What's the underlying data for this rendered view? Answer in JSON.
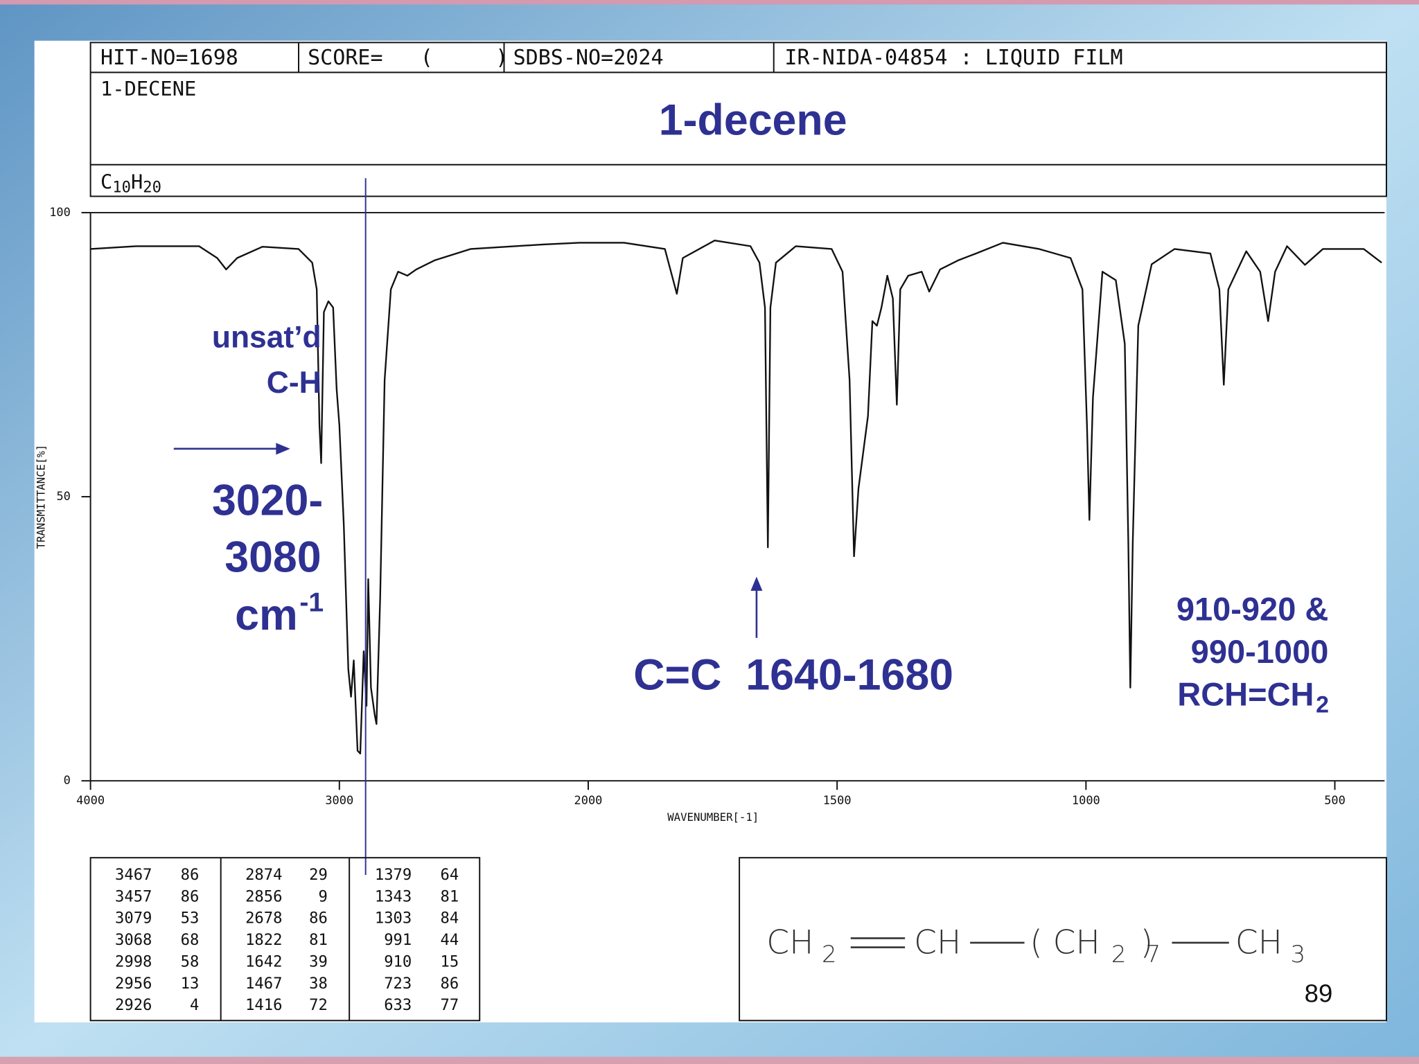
{
  "header": {
    "hit": "HIT-NO=1698",
    "score": "SCORE=   (     )",
    "sdbs": "SDBS-NO=2024",
    "method": "IR-NIDA-04854 : LIQUID FILM",
    "name": "1-DECENE",
    "formula": [
      "C",
      "10",
      "H",
      "20"
    ]
  },
  "title": "1-decene",
  "annotations": {
    "ch_line1": "unsat’d",
    "ch_line2": "C-H",
    "ch_range1": "3020-",
    "ch_range2": "3080",
    "ch_unit": "cm",
    "ch_unit_exp": "-1",
    "cc": "C=C  1640-1680",
    "rch1": "910-920 &",
    "rch2": "990-1000",
    "rch3": "RCH=CH",
    "rch3_sub": "2"
  },
  "chart_data": {
    "type": "line",
    "x_label": "WAVENUMBER[-1]",
    "y_label": "TRANSMITTANCE[%]",
    "xlim": [
      4000,
      400
    ],
    "x_scale": {
      "break": 2000,
      "factor": 2
    },
    "xticks": [
      4000,
      3000,
      2000,
      1500,
      1000,
      500
    ],
    "ylim": [
      0,
      100
    ],
    "yticks": [
      0,
      50,
      100
    ],
    "color": "#111111",
    "x": [
      4000,
      3818,
      3564,
      3491,
      3455,
      3411,
      3309,
      3164,
      3109,
      3091,
      3080,
      3073,
      3062,
      3044,
      3025,
      3011,
      3000,
      2982,
      2964,
      2953,
      2942,
      2927,
      2916,
      2902,
      2891,
      2884,
      2873,
      2858,
      2851,
      2836,
      2818,
      2793,
      2764,
      2727,
      2691,
      2618,
      2473,
      2182,
      2036,
      1928,
      1846,
      1822,
      1810,
      1746,
      1674,
      1656,
      1645,
      1639,
      1634,
      1623,
      1583,
      1511,
      1489,
      1475,
      1466,
      1457,
      1438,
      1429,
      1420,
      1411,
      1399,
      1388,
      1380,
      1373,
      1357,
      1330,
      1315,
      1293,
      1257,
      1221,
      1167,
      1094,
      1031,
      1007,
      998,
      993,
      986,
      967,
      940,
      922,
      915,
      911,
      906,
      895,
      868,
      822,
      750,
      732,
      723,
      714,
      678,
      650,
      634,
      620,
      596,
      560,
      524,
      442,
      406
    ],
    "values": [
      93.6,
      94.1,
      94.1,
      92,
      90,
      92,
      94,
      93.6,
      91.2,
      86.5,
      62.6,
      55.9,
      82.5,
      84.4,
      83.3,
      68.9,
      62.6,
      45,
      19.6,
      14.8,
      21.2,
      5.3,
      4.8,
      22.8,
      13.2,
      35.5,
      16.4,
      11.6,
      10,
      32.3,
      70.5,
      86.5,
      89.6,
      88.9,
      90,
      91.6,
      93.6,
      94.4,
      94.7,
      94.7,
      93.6,
      85.7,
      92,
      95.1,
      94.1,
      91.2,
      83.3,
      41.1,
      83.3,
      91.2,
      94.1,
      93.6,
      89.6,
      70.5,
      39.5,
      51.4,
      64.2,
      80.9,
      80.1,
      83.3,
      88.9,
      84.9,
      66.2,
      86.5,
      88.9,
      89.6,
      86.1,
      90,
      91.6,
      92.8,
      94.7,
      93.6,
      92,
      86.5,
      62.6,
      45.9,
      67.4,
      89.6,
      88.1,
      76.9,
      41.9,
      16.4,
      41.9,
      80.1,
      90.9,
      93.6,
      92.8,
      86.5,
      69.7,
      86.5,
      93.2,
      89.6,
      80.9,
      89.6,
      94.1,
      90.8,
      93.6,
      93.6,
      91.2
    ]
  },
  "peak_table": [
    [
      [
        "3467",
        "86"
      ],
      [
        "3457",
        "86"
      ],
      [
        "3079",
        "53"
      ],
      [
        "3068",
        "68"
      ],
      [
        "2998",
        "58"
      ],
      [
        "2956",
        "13"
      ],
      [
        "2926",
        "4"
      ]
    ],
    [
      [
        "2874",
        "29"
      ],
      [
        "2856",
        "9"
      ],
      [
        "2678",
        "86"
      ],
      [
        "1822",
        "81"
      ],
      [
        "1642",
        "39"
      ],
      [
        "1467",
        "38"
      ],
      [
        "1416",
        "72"
      ]
    ],
    [
      [
        "1379",
        "64"
      ],
      [
        "1343",
        "81"
      ],
      [
        "1303",
        "84"
      ],
      [
        "991",
        "44"
      ],
      [
        "910",
        "15"
      ],
      [
        "723",
        "86"
      ],
      [
        "633",
        "77"
      ]
    ]
  ],
  "structure": [
    "CH",
    "2",
    "CH",
    "( CH",
    "2",
    ")",
    "7",
    "CH",
    "3"
  ],
  "page_number": "89"
}
